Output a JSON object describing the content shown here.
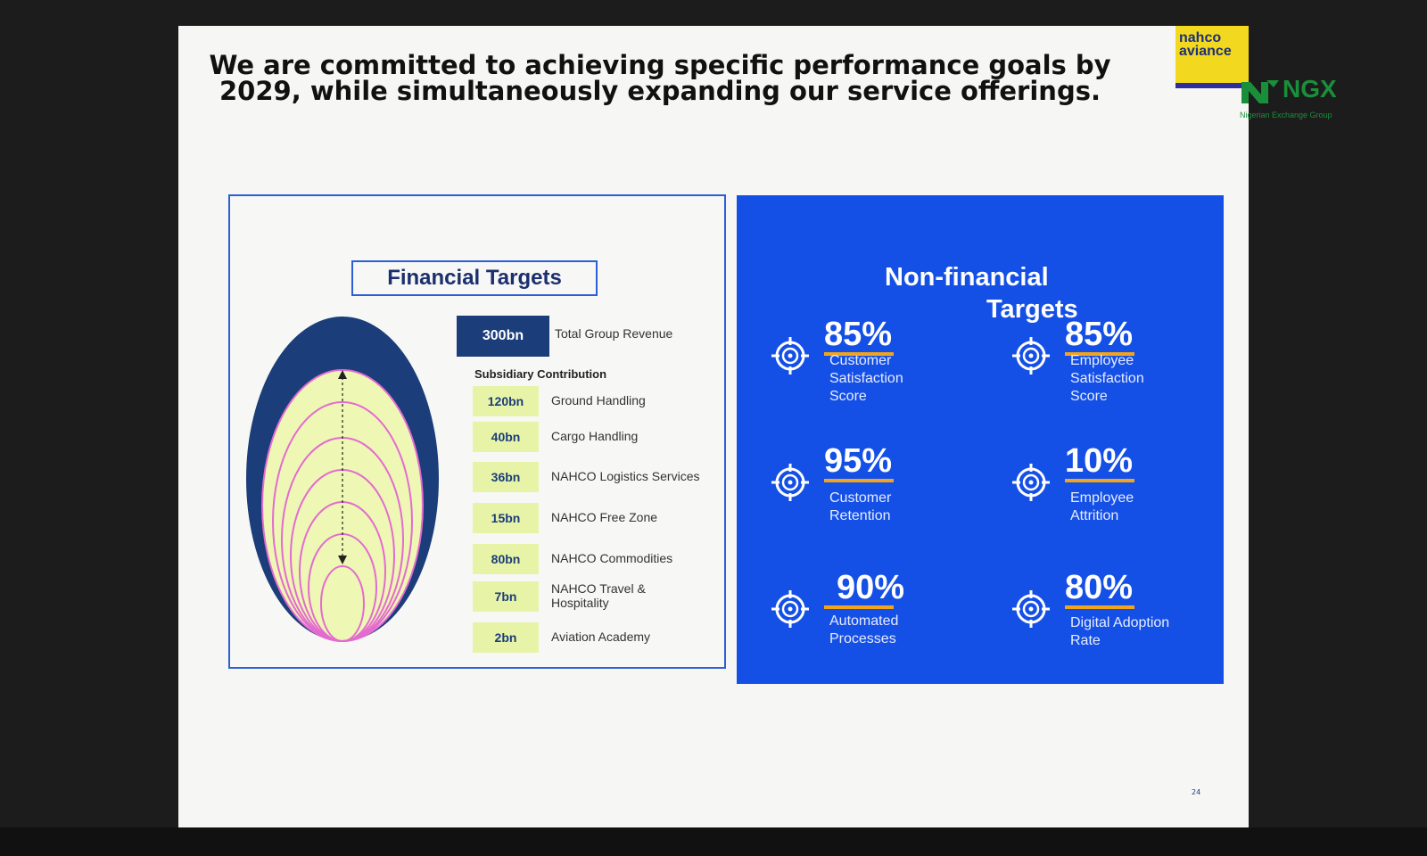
{
  "slide": {
    "title": "We are committed to achieving specific performance goals by 2029, while simultaneously expanding our service offerings.",
    "page_number": "24"
  },
  "logos": {
    "nahco_line1": "nahco",
    "nahco_line2": "aviance",
    "ngx_name": "NGX",
    "ngx_subtitle": "Nigerian Exchange Group"
  },
  "financial": {
    "heading": "Financial Targets",
    "total": {
      "value": "300bn",
      "label": "Total Group Revenue"
    },
    "subsidiary_heading": "Subsidiary Contribution",
    "items": [
      {
        "value": "120bn",
        "label": "Ground Handling"
      },
      {
        "value": "40bn",
        "label": "Cargo Handling"
      },
      {
        "value": "36bn",
        "label": "NAHCO Logistics Services"
      },
      {
        "value": "15bn",
        "label": "NAHCO Free Zone"
      },
      {
        "value": "80bn",
        "label": "NAHCO Commodities"
      },
      {
        "value": "7bn",
        "label": "NAHCO Travel & Hospitality"
      },
      {
        "value": "2bn",
        "label": "Aviation Academy"
      }
    ]
  },
  "non_financial": {
    "heading_line1": "Non-financial",
    "heading_line2": "Targets",
    "kpis": [
      {
        "value": "85%",
        "label": "Customer Satisfaction Score"
      },
      {
        "value": "85%",
        "label": "Employee Satisfaction Score"
      },
      {
        "value": "95%",
        "label": "Customer Retention"
      },
      {
        "value": "10%",
        "label": "Employee Attrition"
      },
      {
        "value": "90%",
        "label": "Automated Processes"
      },
      {
        "value": "80%",
        "label": "Digital Adoption Rate"
      }
    ]
  },
  "colors": {
    "navy": "#1b3d7a",
    "blue_panel": "#1550e6",
    "lime": "#e7f4a8",
    "orange_accent": "#f2a51c",
    "pink_rings": "#e46bd0"
  }
}
